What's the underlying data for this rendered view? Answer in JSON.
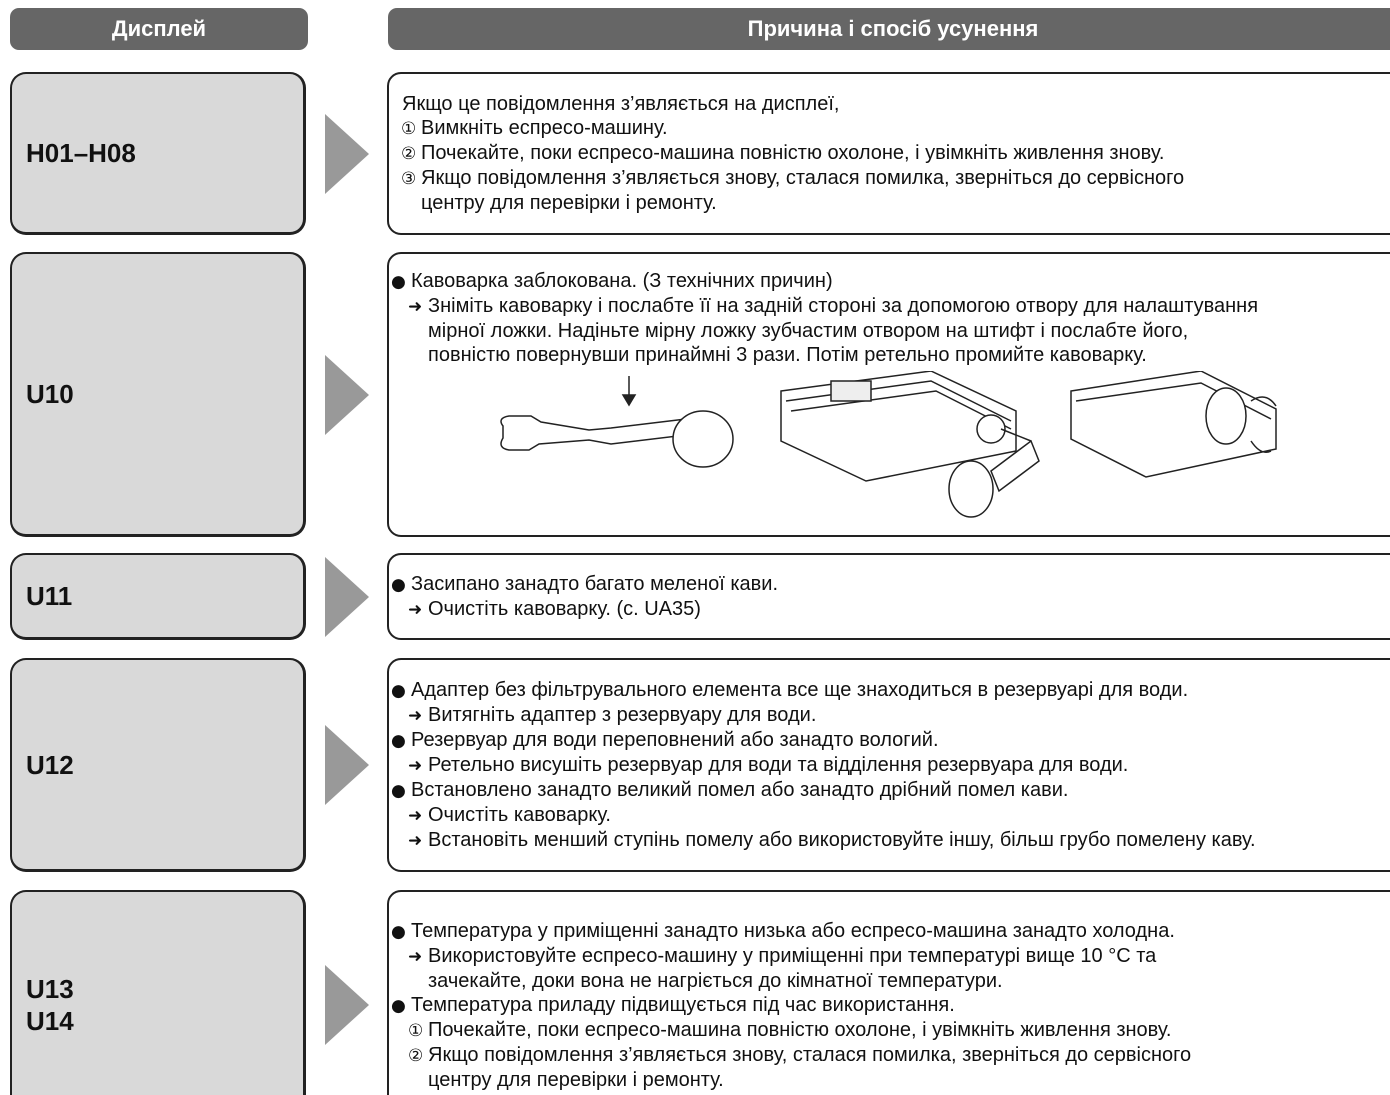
{
  "header": {
    "display": "Дисплей",
    "solution": "Причина і спосіб усунення"
  },
  "rows": [
    {
      "display": [
        "H01–H08"
      ],
      "intro": "Якщо це повідомлення з’являється на дисплеї,",
      "items": [
        {
          "marker": "①",
          "lines": [
            "Вимкніть еспресо-машину."
          ]
        },
        {
          "marker": "②",
          "lines": [
            "Почекайте, поки еспресо-машина повністю охолоне, і увімкніть живлення знову."
          ]
        },
        {
          "marker": "③",
          "lines": [
            "Якщо повідомлення з’являється знову, сталася помилка, зверніться до сервісного",
            "центру для перевірки і ремонту."
          ]
        }
      ]
    },
    {
      "display": [
        "U10"
      ],
      "items": [
        {
          "marker": "●",
          "lines": [
            "Кавоварка заблокована. (З технічних причин)"
          ],
          "sub": [
            {
              "marker": "➜",
              "lines": [
                "Зніміть кавоварку і послабте її на задній стороні за допомогою отвору для налаштування",
                "мірної ложки. Надіньте мірну ложку зубчастим отвором на штифт і послабте його,",
                "повністю повернувши принаймні 3 рази. Потім ретельно промийте кавоварку."
              ]
            }
          ]
        }
      ]
    },
    {
      "display": [
        "U11"
      ],
      "items": [
        {
          "marker": "●",
          "lines": [
            "Засипано занадто багато меленої кави."
          ],
          "sub": [
            {
              "marker": "➜",
              "lines": [
                "Очистіть кавоварку. (с. UA35)"
              ]
            }
          ]
        }
      ]
    },
    {
      "display": [
        "U12"
      ],
      "items": [
        {
          "marker": "●",
          "lines": [
            "Адаптер без фільтрувального елемента все ще знаходиться в резервуарі для води."
          ],
          "sub": [
            {
              "marker": "➜",
              "lines": [
                "Витягніть адаптер з резервуару для води."
              ]
            }
          ]
        },
        {
          "marker": "●",
          "lines": [
            "Резервуар для води переповнений або занадто вологий."
          ],
          "sub": [
            {
              "marker": "➜",
              "lines": [
                "Ретельно висушіть резервуар для води та відділення резервуара для води."
              ]
            }
          ]
        },
        {
          "marker": "●",
          "lines": [
            "Встановлено занадто великий помел або занадто дрібний помел кави."
          ],
          "sub": [
            {
              "marker": "➜",
              "lines": [
                "Очистіть кавоварку."
              ]
            },
            {
              "marker": "➜",
              "lines": [
                "Встановіть менший ступінь помелу або використовуйте іншу, більш грубо помелену каву."
              ]
            }
          ]
        }
      ]
    },
    {
      "display": [
        "U13",
        "U14"
      ],
      "items": [
        {
          "marker": "●",
          "lines": [
            "Температура у приміщенні занадто низька або еспресо-машина занадто холодна."
          ],
          "sub": [
            {
              "marker": "➜",
              "lines": [
                "Використовуйте еспресо-машину у приміщенні при температурі вище 10 °C та",
                "зачекайте, доки вона не нагріється до кімнатної температури."
              ]
            }
          ]
        },
        {
          "marker": "●",
          "lines": [
            "Температура приладу підвищується під час використання."
          ],
          "sub": [
            {
              "marker": "①",
              "lines": [
                "Почекайте, поки еспресо-машина повністю охолоне, і увімкніть живлення знову."
              ]
            },
            {
              "marker": "②",
              "lines": [
                "Якщо повідомлення з’являється знову, сталася помилка, зверніться до сервісного",
                "центру для перевірки і ремонту."
              ]
            }
          ]
        }
      ]
    }
  ]
}
